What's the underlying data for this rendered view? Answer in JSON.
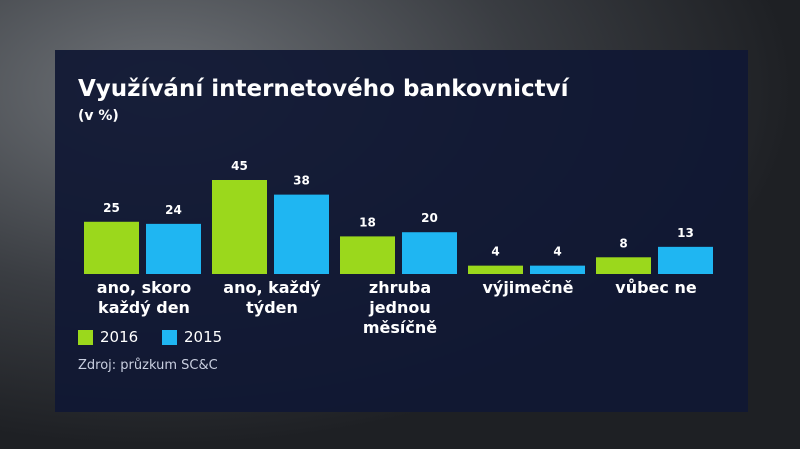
{
  "chart_data": {
    "type": "bar",
    "title": "Využívání internetového bankovnictví",
    "subtitle": "(v %)",
    "categories": [
      "ano, skoro\nkaždý den",
      "ano, každý\ntýden",
      "zhruba jednou\nměsíčně",
      "výjimečně",
      "vůbec ne"
    ],
    "series": [
      {
        "name": "2016",
        "color": "#9bd81c",
        "values": [
          25,
          45,
          18,
          4,
          8
        ]
      },
      {
        "name": "2015",
        "color": "#1fb6f2",
        "values": [
          24,
          38,
          20,
          4,
          13
        ]
      }
    ],
    "ylim": [
      0,
      45
    ],
    "source": "Zdroj: průzkum SC&C"
  }
}
